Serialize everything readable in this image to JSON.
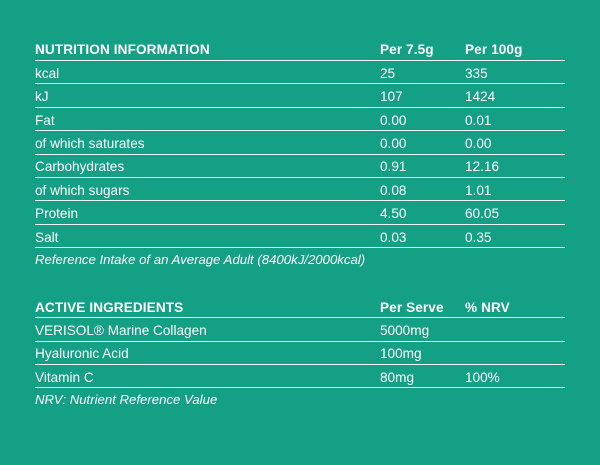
{
  "nutrition": {
    "header": {
      "label": "NUTRITION INFORMATION",
      "col1": "Per 7.5g",
      "col2": "Per 100g"
    },
    "rows": [
      {
        "name": "kcal",
        "v1": "25",
        "v2": "335"
      },
      {
        "name": "kJ",
        "v1": "107",
        "v2": "1424"
      },
      {
        "name": "Fat",
        "v1": "0.00",
        "v2": "0.01"
      },
      {
        "name": "of which saturates",
        "v1": "0.00",
        "v2": "0.00"
      },
      {
        "name": "Carbohydrates",
        "v1": "0.91",
        "v2": "12.16"
      },
      {
        "name": "of which sugars",
        "v1": "0.08",
        "v2": "1.01"
      },
      {
        "name": "Protein",
        "v1": "4.50",
        "v2": "60.05"
      },
      {
        "name": "Salt",
        "v1": "0.03",
        "v2": "0.35"
      }
    ],
    "note": "Reference Intake of an Average Adult (8400kJ/2000kcal)"
  },
  "active": {
    "header": {
      "label": "ACTIVE INGREDIENTS",
      "col1": "Per Serve",
      "col2": "% NRV"
    },
    "rows": [
      {
        "name": "VERISOL® Marine Collagen",
        "v1": "5000mg",
        "v2": ""
      },
      {
        "name": "Hyaluronic Acid",
        "v1": "100mg",
        "v2": ""
      },
      {
        "name": "Vitamin C",
        "v1": "80mg",
        "v2": "100%"
      }
    ],
    "note": "NRV: Nutrient Reference Value"
  },
  "colors": {
    "background": "#14a084",
    "text": "#ffffff"
  }
}
